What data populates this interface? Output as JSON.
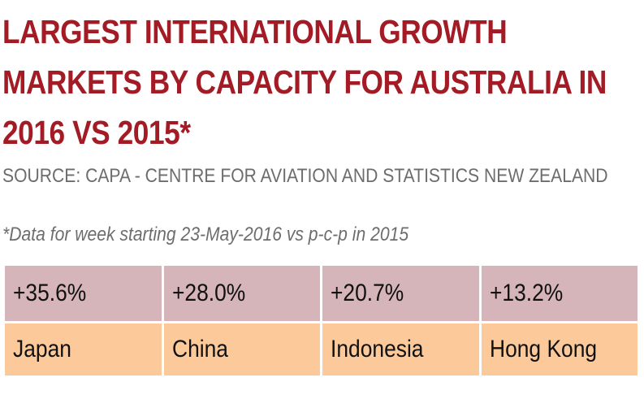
{
  "chart_data": {
    "type": "table",
    "title": "LARGEST INTERNATIONAL GROWTH MARKETS BY CAPACITY FOR AUSTRALIA IN 2016 VS 2015*",
    "source": "SOURCE: CAPA - CENTRE FOR AVIATION AND STATISTICS NEW ZEALAND",
    "note": "*Data for week starting 23-May-2016 vs p-c-p in 2015",
    "categories": [
      "Japan",
      "China",
      "Indonesia",
      "Hong Kong"
    ],
    "values": [
      35.6,
      28.0,
      20.7,
      13.2
    ],
    "value_labels": [
      "+35.6%",
      "+28.0%",
      "+20.7%",
      "+13.2%"
    ]
  },
  "colors": {
    "title": "#a31b25",
    "value_row": "#d5b5ba",
    "label_row": "#fbc99a",
    "source_text": "#6d6d6d"
  }
}
